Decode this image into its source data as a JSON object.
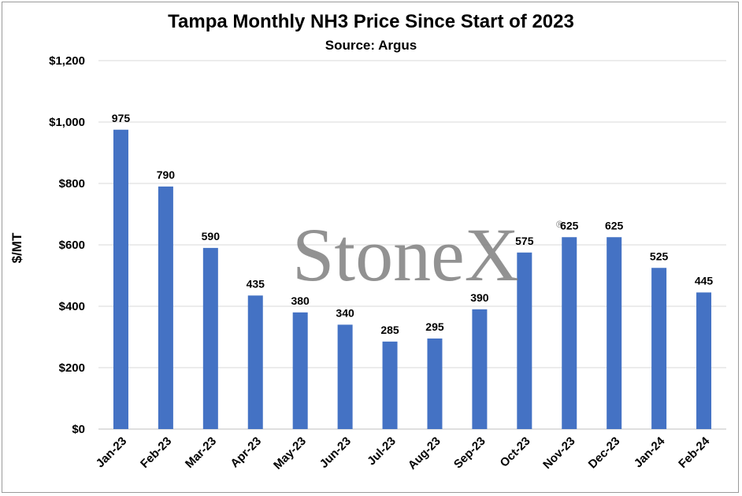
{
  "chart_data": {
    "type": "bar",
    "title": "Tampa Monthly NH3 Price Since Start of 2023",
    "subtitle": "Source:  Argus",
    "ylabel": "$/MT",
    "xlabel": "",
    "categories": [
      "Jan-23",
      "Feb-23",
      "Mar-23",
      "Apr-23",
      "May-23",
      "Jun-23",
      "Jul-23",
      "Aug-23",
      "Sep-23",
      "Oct-23",
      "Nov-23",
      "Dec-23",
      "Jan-24",
      "Feb-24"
    ],
    "values": [
      975,
      790,
      590,
      435,
      380,
      340,
      285,
      295,
      390,
      575,
      625,
      625,
      525,
      445
    ],
    "ylim": [
      0,
      1200
    ],
    "yticks": [
      "$0",
      "$200",
      "$400",
      "$600",
      "$800",
      "$1,000",
      "$1,200"
    ],
    "grid": true,
    "bar_color": "#4472C4",
    "legend": "none"
  },
  "watermark": {
    "text": "StoneX",
    "mark": "®"
  }
}
